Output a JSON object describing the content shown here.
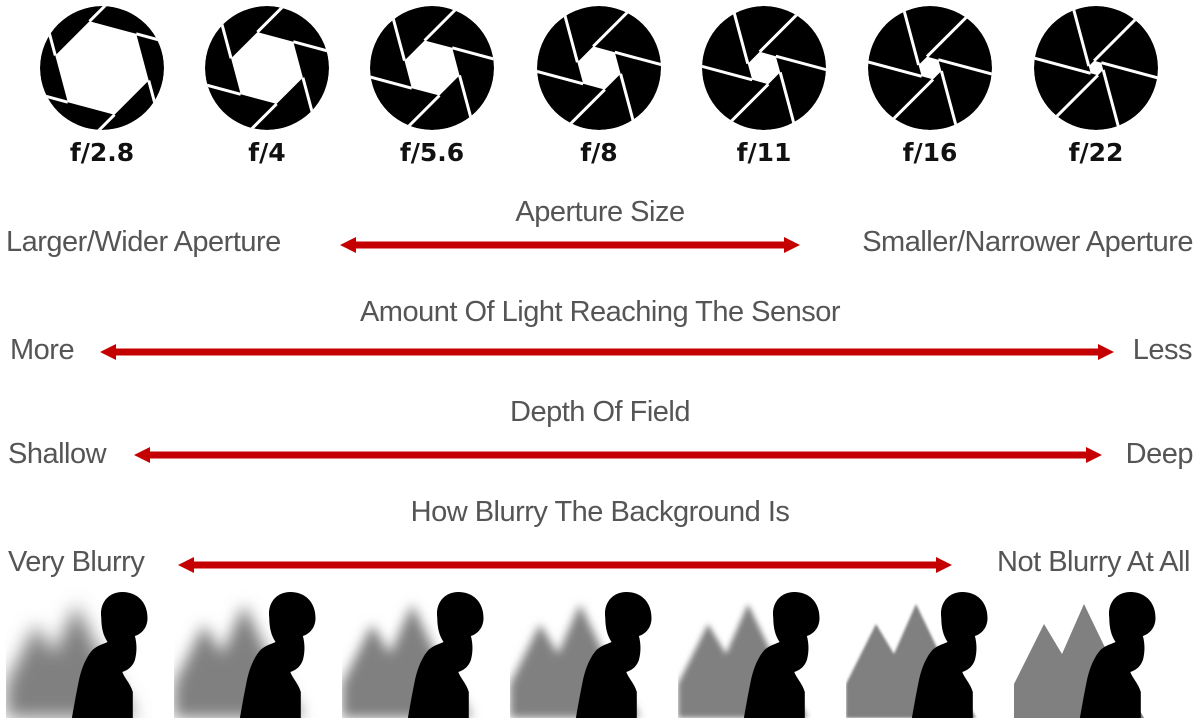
{
  "apertures": [
    {
      "label": "f/2.8",
      "opening": 0.78
    },
    {
      "label": "f/4",
      "opening": 0.6
    },
    {
      "label": "f/5.6",
      "opening": 0.46
    },
    {
      "label": "f/8",
      "opening": 0.36
    },
    {
      "label": "f/11",
      "opening": 0.27
    },
    {
      "label": "f/16",
      "opening": 0.19
    },
    {
      "label": "f/22",
      "opening": 0.12
    }
  ],
  "scales": [
    {
      "title": "Aperture Size",
      "left": "Larger/Wider Aperture",
      "right": "Smaller/Narrower Aperture"
    },
    {
      "title": "Amount Of Light Reaching The Sensor",
      "left": "More",
      "right": "Less"
    },
    {
      "title": "Depth Of Field",
      "left": "Shallow",
      "right": "Deep"
    },
    {
      "title": "How Blurry The Background Is",
      "left": "Very Blurry",
      "right": "Not Blurry At All"
    }
  ],
  "photos": [
    {
      "blur": 1.0
    },
    {
      "blur": 0.83
    },
    {
      "blur": 0.66
    },
    {
      "blur": 0.5
    },
    {
      "blur": 0.33
    },
    {
      "blur": 0.16
    },
    {
      "blur": 0.0
    }
  ],
  "colors": {
    "arrow": "#c40000",
    "label_text": "#555555",
    "fstop_text": "#111111",
    "aperture_blade": "#000000",
    "silhouette": "#000000",
    "mountains": "#808080"
  }
}
